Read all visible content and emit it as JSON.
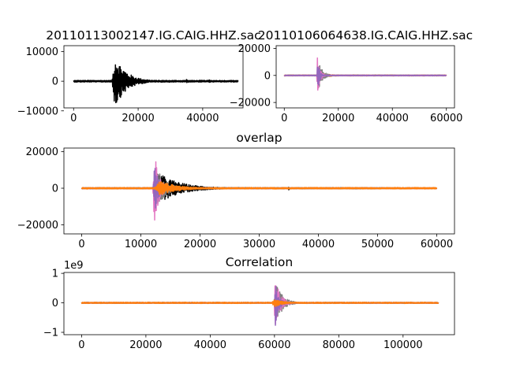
{
  "chart_data": [
    {
      "type": "line",
      "title": "20110113002147.IG.CAIG.HHZ.sac",
      "xlabel": "",
      "ylabel": "",
      "xlim": [
        -3000,
        52500
      ],
      "ylim": [
        -9000,
        12000
      ],
      "xticks": [
        0,
        20000,
        40000
      ],
      "yticks": [
        -10000,
        0,
        10000
      ],
      "grid": false,
      "series": [
        {
          "color": "#000000",
          "baseline_end": 51000,
          "bursts": [
            {
              "center": 12800,
              "width": 900,
              "amplitude": 9000,
              "duration": 3500
            },
            {
              "center": 35000,
              "width": 150,
              "amplitude": 900,
              "duration": 300
            },
            {
              "center": 42000,
              "width": 150,
              "amplitude": 700,
              "duration": 300
            }
          ],
          "noise": 300
        }
      ]
    },
    {
      "type": "line",
      "title": "20110106064638.IG.CAIG.HHZ.sac",
      "xlabel": "",
      "ylabel": "",
      "xlim": [
        -3000,
        63000
      ],
      "ylim": [
        -24000,
        22000
      ],
      "xticks": [
        0,
        20000,
        40000,
        60000
      ],
      "yticks": [
        -20000,
        0,
        20000
      ],
      "grid": false,
      "series": [
        {
          "color": "#ff7f0e",
          "baseline_end": 60000,
          "bursts": [
            {
              "center": 12800,
              "width": 900,
              "amplitude": 3000,
              "duration": 3000
            }
          ],
          "noise": 400
        },
        {
          "color": "#7f7f7f",
          "baseline_end": 60000,
          "bursts": [
            {
              "center": 12900,
              "width": 500,
              "amplitude": 9000,
              "duration": 1500
            }
          ],
          "noise": 300
        },
        {
          "color": "#e377c2",
          "baseline_end": 60000,
          "bursts": [
            {
              "center": 12300,
              "width": 300,
              "amplitude": 20000,
              "duration": 800
            }
          ],
          "noise": 250
        },
        {
          "color": "#9467bd",
          "baseline_end": 60000,
          "bursts": [
            {
              "center": 12350,
              "width": 250,
              "amplitude": 16000,
              "duration": 600
            }
          ],
          "noise": 200
        }
      ]
    },
    {
      "type": "line",
      "title": "overlap",
      "xlabel": "",
      "ylabel": "",
      "xlim": [
        -3000,
        63000
      ],
      "ylim": [
        -25000,
        22000
      ],
      "xticks": [
        0,
        10000,
        20000,
        30000,
        40000,
        50000,
        60000
      ],
      "yticks": [
        -20000,
        0,
        20000
      ],
      "grid": false,
      "series": [
        {
          "color": "#000000",
          "baseline_end": 51000,
          "bursts": [
            {
              "center": 12800,
              "width": 900,
              "amplitude": 9000,
              "duration": 3500
            },
            {
              "center": 35000,
              "width": 150,
              "amplitude": 900,
              "duration": 300
            }
          ],
          "noise": 300
        },
        {
          "color": "#7f7f7f",
          "baseline_end": 60000,
          "bursts": [
            {
              "center": 12900,
              "width": 500,
              "amplitude": 10000,
              "duration": 1500
            }
          ],
          "noise": 300
        },
        {
          "color": "#e377c2",
          "baseline_end": 60000,
          "bursts": [
            {
              "center": 12300,
              "width": 300,
              "amplitude": 20000,
              "duration": 800
            }
          ],
          "noise": 250
        },
        {
          "color": "#9467bd",
          "baseline_end": 60000,
          "bursts": [
            {
              "center": 12350,
              "width": 250,
              "amplitude": 17000,
              "duration": 600
            }
          ],
          "noise": 200
        },
        {
          "color": "#ff7f0e",
          "baseline_end": 60000,
          "bursts": [
            {
              "center": 13200,
              "width": 900,
              "amplitude": 4000,
              "duration": 3000
            }
          ],
          "noise": 400
        }
      ]
    },
    {
      "type": "line",
      "title": "Correlation",
      "xlabel": "",
      "ylabel": "",
      "offset_label": "1e9",
      "xlim": [
        -5500,
        116000
      ],
      "ylim": [
        -1.08,
        1.03
      ],
      "xticks": [
        0,
        20000,
        40000,
        60000,
        80000,
        100000
      ],
      "yticks": [
        -1,
        0,
        1
      ],
      "grid": false,
      "series": [
        {
          "color": "#7f7f7f",
          "baseline_end": 111000,
          "bursts": [
            {
              "center": 60500,
              "width": 700,
              "amplitude": 0.7,
              "duration": 2000
            }
          ],
          "noise": 0.02
        },
        {
          "color": "#e377c2",
          "baseline_end": 111000,
          "bursts": [
            {
              "center": 60300,
              "width": 450,
              "amplitude": 1.0,
              "duration": 1400
            }
          ],
          "noise": 0.015
        },
        {
          "color": "#9467bd",
          "baseline_end": 111000,
          "bursts": [
            {
              "center": 60300,
              "width": 350,
              "amplitude": 0.85,
              "duration": 1000
            }
          ],
          "noise": 0.015
        },
        {
          "color": "#ff7f0e",
          "baseline_end": 111000,
          "bursts": [
            {
              "center": 60000,
              "width": 900,
              "amplitude": 0.15,
              "duration": 2500
            }
          ],
          "noise": 0.02
        }
      ]
    }
  ]
}
